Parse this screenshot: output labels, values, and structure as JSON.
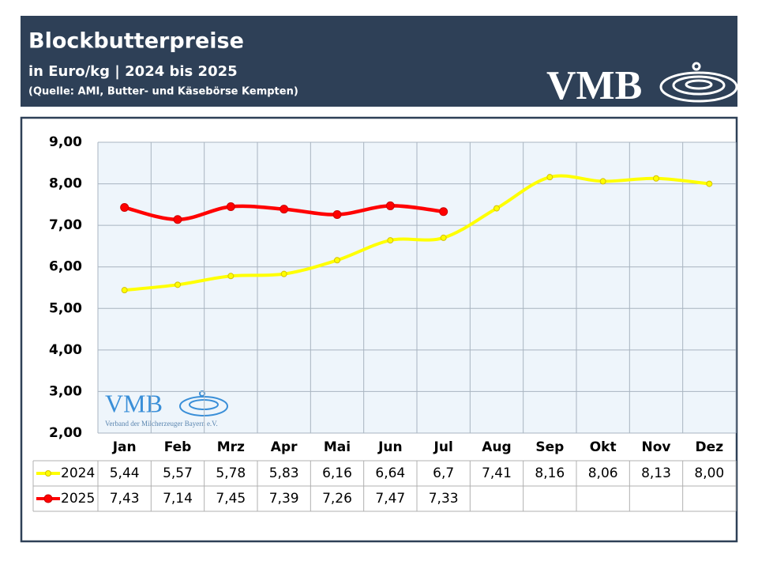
{
  "chart_data": {
    "type": "line",
    "title": "Blockbutterpreise",
    "subtitle": "in Euro/kg | 2024 bis 2025",
    "source": "(Quelle: AMI, Butter- und Käsebörse Kempten)",
    "logo": "VMB",
    "watermark": "VMB",
    "watermark_caption": "Verband der Milcherzeuger Bayern e.V.",
    "categories": [
      "Jan",
      "Feb",
      "Mrz",
      "Apr",
      "Mai",
      "Jun",
      "Jul",
      "Aug",
      "Sep",
      "Okt",
      "Nov",
      "Dez"
    ],
    "series": [
      {
        "name": "2024",
        "color": "#ffff00",
        "marker_edge": "#d4c000",
        "values": [
          5.44,
          5.57,
          5.78,
          5.83,
          6.16,
          6.64,
          6.7,
          7.41,
          8.16,
          8.06,
          8.13,
          8.0
        ],
        "value_labels": [
          "5,44",
          "5,57",
          "5,78",
          "5,83",
          "6,16",
          "6,64",
          "6,7",
          "7,41",
          "8,16",
          "8,06",
          "8,13",
          "8,00"
        ]
      },
      {
        "name": "2025",
        "color": "#ff0000",
        "marker_edge": "#cc0000",
        "values": [
          7.43,
          7.14,
          7.45,
          7.39,
          7.26,
          7.47,
          7.33,
          null,
          null,
          null,
          null,
          null
        ],
        "value_labels": [
          "7,43",
          "7,14",
          "7,45",
          "7,39",
          "7,26",
          "7,47",
          "7,33",
          null,
          null,
          null,
          null,
          null
        ]
      }
    ],
    "ylim": [
      2,
      9
    ],
    "yticks": [
      {
        "value": 2,
        "label": "2,00"
      },
      {
        "value": 3,
        "label": "3,00"
      },
      {
        "value": 4,
        "label": "4,00"
      },
      {
        "value": 5,
        "label": "5,00"
      },
      {
        "value": 6,
        "label": "6,00"
      },
      {
        "value": 7,
        "label": "7,00"
      },
      {
        "value": 8,
        "label": "8,00"
      },
      {
        "value": 9,
        "label": "9,00"
      }
    ],
    "grid": true
  }
}
